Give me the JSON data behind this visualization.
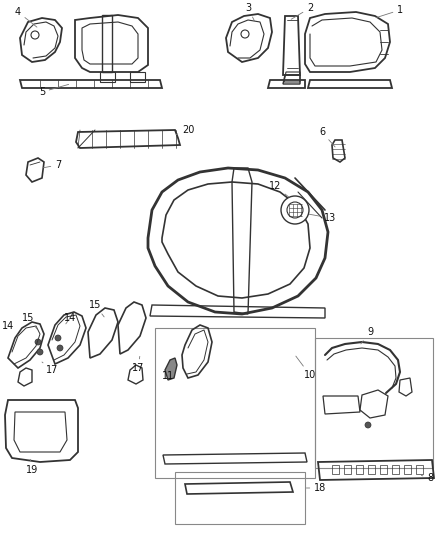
{
  "bg_color": "#ffffff",
  "fig_width": 4.38,
  "fig_height": 5.33,
  "dpi": 100,
  "line_color": "#333333",
  "text_color": "#111111",
  "font_size": 7.0,
  "leader_color": "#777777"
}
